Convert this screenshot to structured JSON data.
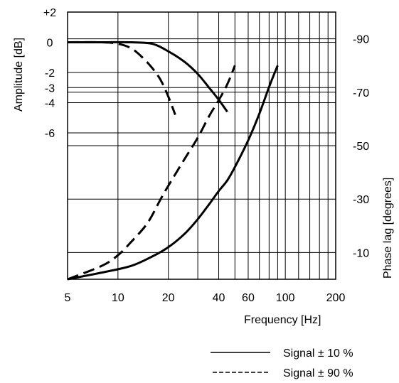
{
  "chart_data": {
    "type": "line",
    "xlabel": "Frequency [Hz]",
    "ylabel_left": "Amplitude [dB]",
    "ylabel_right": "Phase lag [degrees]",
    "x_ticks": [
      {
        "value": 5,
        "label": "5"
      },
      {
        "value": 10,
        "label": "10"
      },
      {
        "value": 20,
        "label": "20"
      },
      {
        "value": 40,
        "label": "40"
      },
      {
        "value": 60,
        "label": "60"
      },
      {
        "value": 100,
        "label": "100"
      },
      {
        "value": 200,
        "label": "200"
      }
    ],
    "y_left_ticks": [
      {
        "value": 2,
        "label": "+2"
      },
      {
        "value": 0,
        "label": "0"
      },
      {
        "value": -2,
        "label": "-2"
      },
      {
        "value": -3,
        "label": "-3"
      },
      {
        "value": -4,
        "label": "-4"
      },
      {
        "value": -6,
        "label": "-6"
      }
    ],
    "y_right_ticks": [
      {
        "value": -90,
        "label": "-90"
      },
      {
        "value": -70,
        "label": "-70"
      },
      {
        "value": -50,
        "label": "-50"
      },
      {
        "value": -30,
        "label": "-30"
      },
      {
        "value": -10,
        "label": "-10"
      }
    ],
    "series": [
      {
        "name": "Signal ± 10 %",
        "style": "solid",
        "amplitude": {
          "x": [
            5,
            8,
            12,
            16,
            20,
            25,
            30,
            35,
            40,
            45
          ],
          "y": [
            0,
            0,
            0,
            -0.1,
            -0.6,
            -1.3,
            -2.1,
            -3.0,
            -3.8,
            -4.6
          ]
        },
        "phase": {
          "x": [
            5,
            8,
            12,
            16,
            20,
            25,
            30,
            35,
            40,
            45,
            50,
            60,
            70,
            80,
            90
          ],
          "y": [
            0,
            -2.5,
            -5,
            -8.5,
            -12,
            -17,
            -22.5,
            -28,
            -33,
            -37,
            -42,
            -52,
            -62,
            -72,
            -80
          ]
        }
      },
      {
        "name": "Signal ± 90 %",
        "style": "dashed",
        "amplitude": {
          "x": [
            5,
            8,
            10,
            12,
            14,
            16,
            18,
            20,
            22
          ],
          "y": [
            0,
            0,
            -0.1,
            -0.4,
            -1.0,
            -1.7,
            -2.5,
            -3.6,
            -4.8
          ]
        },
        "phase": {
          "x": [
            5,
            8,
            10,
            12,
            15,
            18,
            20,
            25,
            30,
            35,
            40,
            45,
            50
          ],
          "y": [
            0,
            -5,
            -9,
            -14,
            -21,
            -30,
            -35,
            -45,
            -53,
            -61,
            -67,
            -73,
            -80
          ]
        }
      }
    ],
    "legend": {
      "placement": "bottom-right"
    },
    "grid": true
  }
}
